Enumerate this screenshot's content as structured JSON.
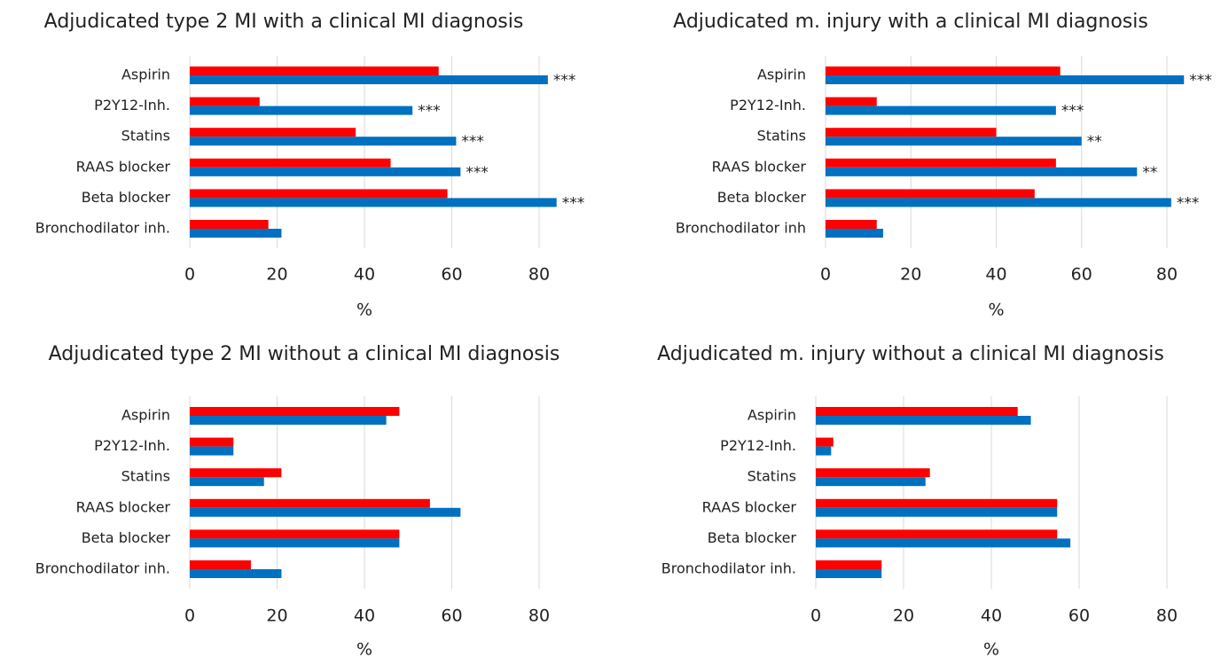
{
  "chart_data": [
    {
      "type": "bar",
      "orientation": "horizontal",
      "title": "Adjudicated type 2 MI with a clinical MI diagnosis",
      "xlabel": "%",
      "categories": [
        "Aspirin",
        "P2Y12-Inh.",
        "Statins",
        "RAAS blocker",
        "Beta blocker",
        "Bronchodilator inh."
      ],
      "series": [
        {
          "color": "#ff0000",
          "values": [
            57,
            16,
            38,
            46,
            59,
            18
          ]
        },
        {
          "color": "#0070c0",
          "values": [
            82,
            51,
            61,
            62,
            84,
            21
          ]
        }
      ],
      "annotations": [
        "***",
        "***",
        "***",
        "***",
        "***",
        null
      ],
      "xlim": [
        0,
        90
      ],
      "xticks": [
        0,
        20,
        40,
        60,
        80
      ],
      "grid": true
    },
    {
      "type": "bar",
      "orientation": "horizontal",
      "title": "Adjudicated m. injury with a clinical MI diagnosis",
      "xlabel": "%",
      "categories": [
        "Aspirin",
        "P2Y12-Inh.",
        "Statins",
        "RAAS blocker",
        "Beta blocker",
        "Bronchodilator inh"
      ],
      "series": [
        {
          "color": "#ff0000",
          "values": [
            55,
            12,
            40,
            54,
            49,
            12
          ]
        },
        {
          "color": "#0070c0",
          "values": [
            84,
            54,
            60,
            73,
            81,
            13.5
          ]
        }
      ],
      "annotations": [
        "***",
        "***",
        "**",
        "**",
        "***",
        null
      ],
      "xlim": [
        0,
        90
      ],
      "xticks": [
        0,
        20,
        40,
        60,
        80
      ],
      "grid": true
    },
    {
      "type": "bar",
      "orientation": "horizontal",
      "title": "Adjudicated type 2 MI without a clinical MI diagnosis",
      "xlabel": "%",
      "categories": [
        "Aspirin",
        "P2Y12-Inh.",
        "Statins",
        "RAAS blocker",
        "Beta blocker",
        "Bronchodilator inh."
      ],
      "series": [
        {
          "color": "#ff0000",
          "values": [
            48,
            10,
            21,
            55,
            48,
            14
          ]
        },
        {
          "color": "#0070c0",
          "values": [
            45,
            10,
            17,
            62,
            48,
            21
          ]
        }
      ],
      "xlim": [
        0,
        90
      ],
      "xticks": [
        0,
        20,
        40,
        60,
        80
      ],
      "grid": true
    },
    {
      "type": "bar",
      "orientation": "horizontal",
      "title": "Adjudicated m. injury without a clinical MI diagnosis",
      "xlabel": "%",
      "categories": [
        "Aspirin",
        "P2Y12-Inh.",
        "Statins",
        "RAAS blocker",
        "Beta blocker",
        "Bronchodilator inh."
      ],
      "series": [
        {
          "color": "#ff0000",
          "values": [
            46,
            4,
            26,
            55,
            55,
            15
          ]
        },
        {
          "color": "#0070c0",
          "values": [
            49,
            3.5,
            25,
            55,
            58,
            15
          ]
        }
      ],
      "xlim": [
        0,
        90
      ],
      "xticks": [
        0,
        20,
        40,
        60,
        80
      ],
      "grid": true
    }
  ]
}
